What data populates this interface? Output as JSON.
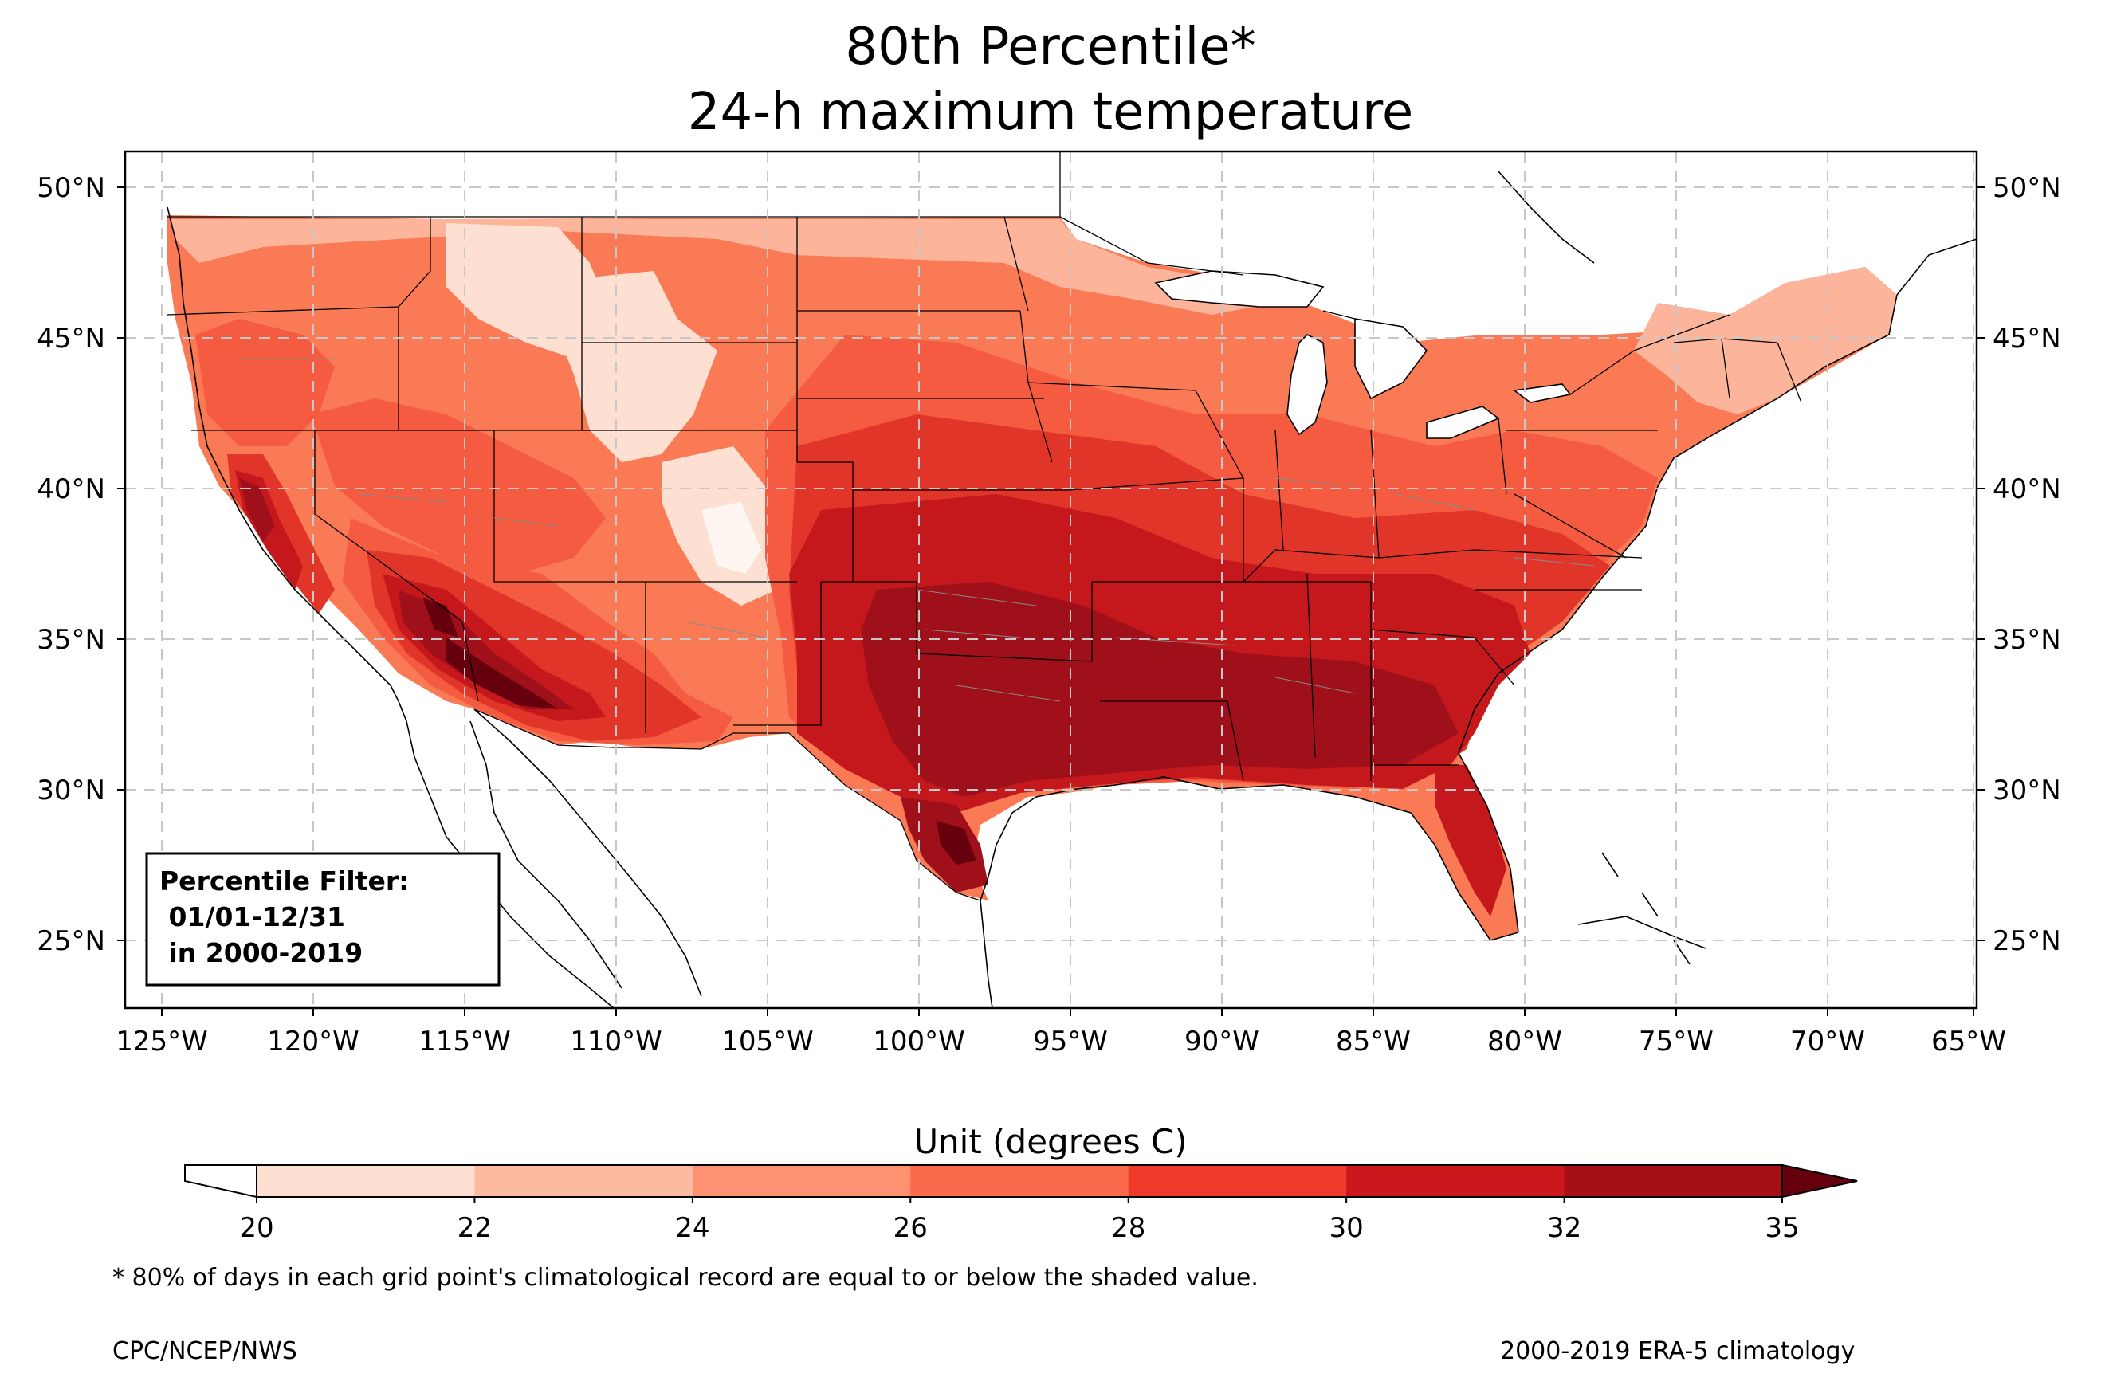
{
  "title": {
    "line1": "80th Percentile*",
    "line2": "24-h maximum temperature"
  },
  "map": {
    "region": "Contiguous United States",
    "lon_ticks": [
      "125°W",
      "120°W",
      "115°W",
      "110°W",
      "105°W",
      "100°W",
      "95°W",
      "90°W",
      "85°W",
      "80°W",
      "75°W",
      "70°W",
      "65°W"
    ],
    "lat_ticks": [
      "50°N",
      "45°N",
      "40°N",
      "35°N",
      "30°N",
      "25°N"
    ],
    "gridlines": true,
    "gridline_style": "dashed"
  },
  "filter_box": {
    "line1": "Percentile Filter:",
    "line2": " 01/01-12/31",
    "line3": " in 2000-2019"
  },
  "colorbar": {
    "title": "Unit (degrees C)",
    "ticks": [
      "20",
      "22",
      "24",
      "26",
      "28",
      "30",
      "32",
      "35"
    ],
    "colors": [
      "#fee0d2",
      "#fcbba1",
      "#fc9272",
      "#fb6a4a",
      "#ef3b2c",
      "#cb181d",
      "#a50f15"
    ],
    "under_color": "#ffffff",
    "over_color": "#67000d",
    "extend": "both"
  },
  "footnote": "* 80% of days in each grid point's climatological record are equal to or below the shaded value.",
  "credit_left": "CPC/NCEP/NWS",
  "credit_right": "2000-2019 ERA-5 climatology"
}
